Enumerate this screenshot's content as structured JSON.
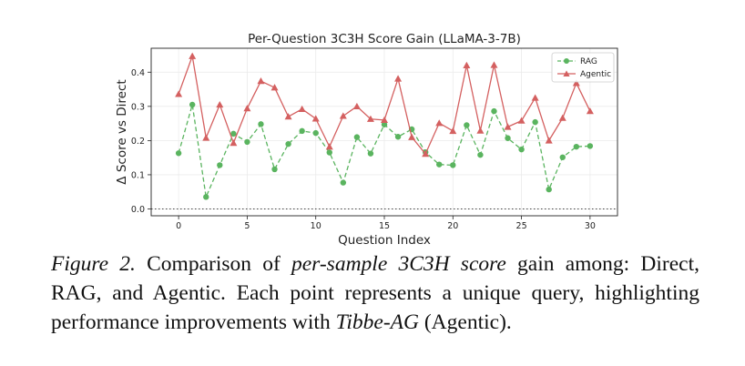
{
  "chart_data": {
    "type": "line",
    "title": "Per-Question 3C3H Score Gain (LLaMA-3-7B)",
    "xlabel": "Question Index",
    "ylabel": "Δ Score vs Direct",
    "xlim": [
      -2,
      32
    ],
    "ylim": [
      -0.02,
      0.47
    ],
    "xticks": [
      0,
      5,
      10,
      15,
      20,
      25,
      30
    ],
    "yticks": [
      0.0,
      0.1,
      0.2,
      0.3,
      0.4
    ],
    "ytick_labels": [
      "0.0",
      "0.1",
      "0.2",
      "0.3",
      "0.4"
    ],
    "grid": true,
    "zero_line": true,
    "legend_position": "top-right",
    "x": [
      0,
      1,
      2,
      3,
      4,
      5,
      6,
      7,
      8,
      9,
      10,
      11,
      12,
      13,
      14,
      15,
      16,
      17,
      18,
      19,
      20,
      21,
      22,
      23,
      24,
      25,
      26,
      27,
      28,
      29,
      30
    ],
    "series": [
      {
        "name": "RAG",
        "color": "#5ab45f",
        "marker": "circle",
        "style": "dashed",
        "values": [
          0.163,
          0.305,
          0.035,
          0.128,
          0.22,
          0.196,
          0.248,
          0.116,
          0.19,
          0.228,
          0.222,
          0.165,
          0.077,
          0.21,
          0.162,
          0.247,
          0.211,
          0.233,
          0.166,
          0.13,
          0.128,
          0.245,
          0.158,
          0.286,
          0.207,
          0.174,
          0.254,
          0.057,
          0.151,
          0.182,
          0.184
        ]
      },
      {
        "name": "Agentic",
        "color": "#d46060",
        "marker": "triangle",
        "style": "solid",
        "values": [
          0.336,
          0.447,
          0.208,
          0.305,
          0.193,
          0.294,
          0.374,
          0.355,
          0.27,
          0.292,
          0.264,
          0.182,
          0.272,
          0.3,
          0.263,
          0.26,
          0.381,
          0.21,
          0.161,
          0.251,
          0.228,
          0.42,
          0.229,
          0.421,
          0.24,
          0.258,
          0.325,
          0.2,
          0.266,
          0.368,
          0.286
        ]
      }
    ]
  },
  "caption": {
    "figure_label": "Figure 2.",
    "part1": " Comparison of ",
    "em1": "per-sample 3C3H score",
    "part2": " gain among: Direct, RAG, and Agentic.  Each point represents a unique query, highlighting performance improvements with ",
    "em2": "Tibbe-AG",
    "part3": " (Agentic)."
  }
}
